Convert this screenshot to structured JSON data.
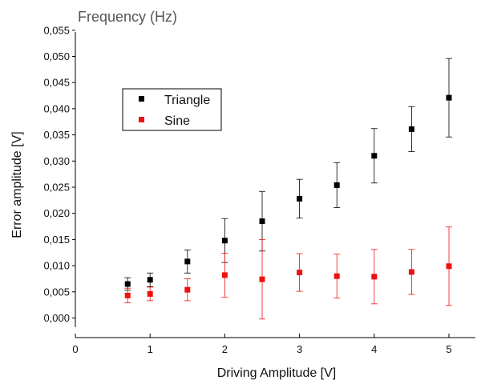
{
  "chart_data": {
    "type": "scatter",
    "title": "Frequency (Hz)",
    "xlabel": "Driving Amplitude [V]",
    "ylabel": "Error amplitude [V]",
    "xlim": [
      0,
      5.4
    ],
    "ylim": [
      -0.002,
      0.055
    ],
    "xticks": [
      "0",
      "1",
      "2",
      "3",
      "4",
      "5"
    ],
    "yticks": [
      "0,000",
      "0,005",
      "0,010",
      "0,015",
      "0,020",
      "0,025",
      "0,030",
      "0,035",
      "0,040",
      "0,045",
      "0,050",
      "0,055"
    ],
    "grid": false,
    "legend_position": "upper-left",
    "series": [
      {
        "name": "Triangle",
        "color": "#000000",
        "marker": "square",
        "points": [
          {
            "x": 0.7,
            "y": 0.0065,
            "err": 0.0012
          },
          {
            "x": 1.0,
            "y": 0.0073,
            "err": 0.0013
          },
          {
            "x": 1.5,
            "y": 0.0108,
            "err": 0.0022
          },
          {
            "x": 2.0,
            "y": 0.0148,
            "err": 0.0042
          },
          {
            "x": 2.5,
            "y": 0.0185,
            "err": 0.0057
          },
          {
            "x": 3.0,
            "y": 0.0228,
            "err": 0.0037
          },
          {
            "x": 3.5,
            "y": 0.0254,
            "err": 0.0043
          },
          {
            "x": 4.0,
            "y": 0.031,
            "err": 0.0052
          },
          {
            "x": 4.5,
            "y": 0.0361,
            "err": 0.0043
          },
          {
            "x": 5.0,
            "y": 0.0421,
            "err": 0.0075
          }
        ]
      },
      {
        "name": "Sine",
        "color": "#ee1111",
        "marker": "square",
        "points": [
          {
            "x": 0.7,
            "y": 0.0043,
            "err": 0.0014
          },
          {
            "x": 1.0,
            "y": 0.0046,
            "err": 0.0013
          },
          {
            "x": 1.5,
            "y": 0.0054,
            "err": 0.0021
          },
          {
            "x": 2.0,
            "y": 0.0082,
            "err": 0.0042
          },
          {
            "x": 2.5,
            "y": 0.0074,
            "err": 0.0076
          },
          {
            "x": 3.0,
            "y": 0.0087,
            "err": 0.0036
          },
          {
            "x": 3.5,
            "y": 0.008,
            "err": 0.0042
          },
          {
            "x": 4.0,
            "y": 0.0079,
            "err": 0.0052
          },
          {
            "x": 4.5,
            "y": 0.0088,
            "err": 0.0043
          },
          {
            "x": 5.0,
            "y": 0.0099,
            "err": 0.0075
          }
        ]
      }
    ]
  }
}
